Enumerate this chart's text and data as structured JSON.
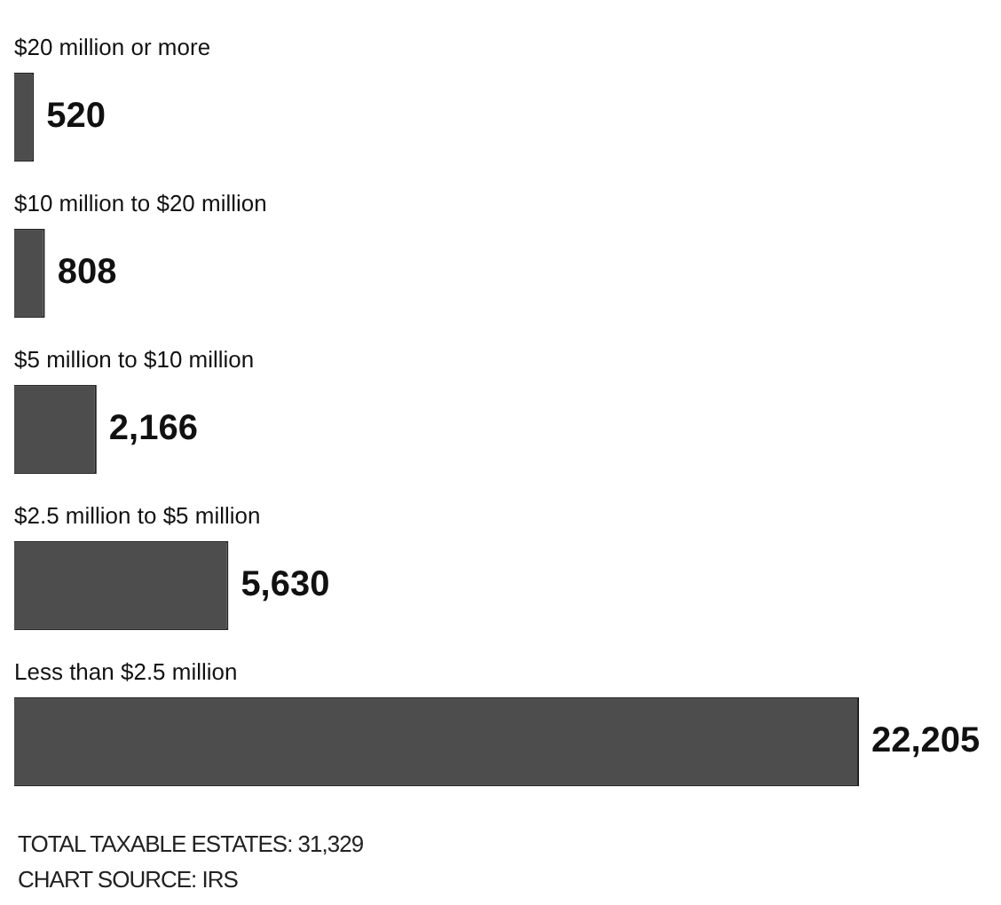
{
  "chart_data": {
    "type": "bar",
    "orientation": "horizontal",
    "categories": [
      "$20 million or more",
      "$10 million to $20 million",
      "$5 million to $10 million",
      "$2.5 million to $5 million",
      "Less than $2.5 million"
    ],
    "values": [
      520,
      808,
      2166,
      5630,
      22205
    ],
    "color": "#4d4d4d",
    "value_labels": [
      "520",
      "808",
      "2,166",
      "5,630",
      "22,205"
    ],
    "annotations": [
      "TOTAL TAXABLE ESTATES: 31,329",
      "CHART SOURCE: IRS"
    ]
  }
}
